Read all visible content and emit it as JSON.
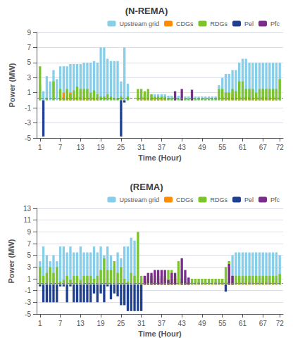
{
  "chart_data": [
    {
      "type": "bar",
      "stacked": true,
      "title": "(N-REMA)",
      "x_label": "Time (Hour)",
      "y_label": "Power (MW)",
      "x": [
        1,
        2,
        3,
        4,
        5,
        6,
        7,
        8,
        9,
        10,
        11,
        12,
        13,
        14,
        15,
        16,
        17,
        18,
        19,
        20,
        21,
        22,
        23,
        24,
        25,
        26,
        27,
        28,
        29,
        30,
        31,
        32,
        33,
        34,
        35,
        36,
        37,
        38,
        39,
        40,
        41,
        42,
        43,
        44,
        45,
        46,
        47,
        48,
        49,
        50,
        51,
        52,
        53,
        54,
        55,
        56,
        57,
        58,
        59,
        60,
        61,
        62,
        63,
        64,
        65,
        66,
        67,
        68,
        69,
        70,
        71,
        72
      ],
      "xlim": [
        0,
        73
      ],
      "xticks": [
        1,
        7,
        13,
        19,
        25,
        31,
        37,
        43,
        49,
        55,
        61,
        67,
        72
      ],
      "ylim": [
        -5,
        9
      ],
      "yticks": [
        -5,
        -3,
        -1,
        1,
        3,
        5,
        7,
        9
      ],
      "grid": true,
      "legend": "upper right",
      "hline": 0.3,
      "series": [
        {
          "name": "Upstream grid",
          "color": "#87CEEB",
          "values": [
            2.0,
            1.2,
            3.2,
            2.5,
            4.0,
            2.8,
            4.5,
            4.5,
            4.5,
            4.8,
            4.8,
            4.8,
            4.8,
            5.0,
            5.0,
            5.0,
            5.2,
            5.0,
            7.0,
            7.0,
            5.5,
            5.2,
            5.2,
            5.2,
            2.5,
            7.0,
            2.2,
            0.0,
            0.0,
            0.5,
            0.5,
            0.8,
            1.0,
            0.8,
            0.8,
            0.8,
            0.8,
            0.8,
            0.6,
            0.6,
            0.6,
            0.6,
            0.5,
            0.5,
            0.5,
            0.5,
            0.5,
            0.5,
            0.5,
            0.5,
            0.5,
            0.5,
            0.5,
            2.0,
            3.0,
            3.5,
            3.5,
            4.0,
            4.0,
            5.0,
            5.5,
            5.5,
            5.0,
            5.0,
            5.0,
            5.0,
            5.0,
            5.0,
            5.0,
            5.0,
            5.0,
            5.0
          ]
        },
        {
          "name": "CDGs",
          "color": "#FF8C00",
          "values": [
            0.0,
            0.0,
            0.0,
            0.0,
            0.0,
            0.0,
            0.5,
            1.0,
            0.5,
            1.0,
            0.8,
            0.5,
            0.5,
            0.5,
            0.4,
            0.3,
            0.5,
            0.3,
            0.0,
            0.0,
            0.0,
            0.0,
            0.0,
            0.0,
            0.0,
            0.0,
            0.0,
            0.0,
            0.0,
            0.3,
            0.5,
            0.5,
            0.5,
            0.4,
            0.3,
            0.3,
            0.3,
            0.3,
            0.0,
            0.0,
            0.0,
            0.0,
            0.0,
            0.0,
            0.0,
            0.0,
            0.0,
            0.0,
            0.0,
            0.0,
            0.0,
            0.0,
            0.0,
            0.0,
            0.5,
            1.0,
            1.0,
            0.8,
            0.8,
            0.5,
            0.5,
            0.5,
            0.5,
            0.5,
            0.5,
            0.5,
            0.5,
            0.5,
            0.5,
            0.5,
            0.5,
            0.0
          ]
        },
        {
          "name": "RDGs",
          "color": "#7DC42C",
          "values": [
            4.5,
            0.0,
            0.3,
            0.0,
            2.5,
            0.0,
            1.5,
            0.3,
            1.5,
            0.8,
            1.3,
            1.8,
            1.5,
            1.5,
            1.5,
            1.0,
            1.3,
            0.8,
            0.5,
            0.5,
            0.8,
            0.5,
            0.3,
            0.3,
            0.5,
            0.0,
            0.5,
            0.0,
            0.0,
            1.5,
            1.5,
            1.2,
            1.5,
            0.8,
            0.5,
            0.5,
            0.5,
            0.5,
            0.3,
            0.3,
            0.3,
            0.2,
            0.2,
            0.2,
            0.2,
            0.2,
            0.2,
            0.2,
            0.2,
            0.2,
            0.2,
            0.2,
            0.2,
            1.5,
            1.5,
            1.0,
            1.0,
            1.5,
            1.2,
            2.5,
            2.5,
            1.5,
            1.5,
            1.5,
            1.0,
            1.5,
            1.5,
            1.5,
            1.5,
            1.5,
            1.5,
            2.8
          ]
        },
        {
          "name": "Pel",
          "color": "#1F3F8F",
          "values": [
            0.0,
            -4.8,
            0.0,
            0.0,
            0.0,
            0.0,
            0.0,
            0.0,
            0.0,
            0.0,
            0.0,
            0.0,
            0.0,
            0.0,
            0.0,
            0.0,
            0.0,
            0.0,
            0.0,
            0.0,
            0.0,
            0.0,
            0.0,
            0.0,
            -4.8,
            -0.3,
            0.0,
            0.0,
            0.0,
            0.0,
            0.0,
            0.0,
            0.0,
            0.0,
            0.0,
            0.0,
            0.0,
            0.0,
            0.0,
            0.0,
            0.0,
            0.0,
            0.0,
            0.0,
            0.0,
            0.0,
            0.0,
            0.0,
            0.0,
            0.0,
            0.0,
            0.0,
            0.0,
            0.0,
            0.0,
            0.0,
            0.0,
            0.0,
            0.0,
            0.0,
            0.0,
            0.0,
            0.0,
            0.0,
            0.0,
            0.0,
            0.0,
            0.0,
            0.0,
            0.0,
            0.0,
            0.0
          ]
        },
        {
          "name": "Pfc",
          "color": "#7B2D8B",
          "values": [
            0.0,
            0.0,
            0.0,
            0.0,
            0.0,
            0.0,
            0.0,
            0.0,
            0.0,
            0.0,
            0.0,
            0.0,
            0.0,
            0.0,
            0.0,
            0.0,
            0.0,
            0.0,
            0.0,
            0.0,
            0.0,
            0.0,
            0.0,
            0.0,
            0.0,
            0.0,
            0.0,
            0.0,
            0.0,
            0.0,
            0.0,
            0.0,
            0.0,
            0.0,
            0.0,
            0.0,
            0.0,
            0.0,
            0.0,
            0.0,
            1.2,
            0.0,
            1.5,
            0.0,
            0.0,
            1.4,
            0.0,
            0.0,
            0.0,
            0.0,
            0.0,
            0.0,
            0.0,
            0.0,
            0.0,
            0.0,
            0.0,
            0.0,
            0.0,
            0.0,
            0.0,
            0.0,
            0.0,
            0.0,
            0.0,
            0.0,
            0.0,
            0.0,
            0.0,
            0.0,
            0.0,
            0.0
          ]
        }
      ]
    },
    {
      "type": "bar",
      "stacked": true,
      "title": "(REMA)",
      "x_label": "Time (Hour)",
      "y_label": "Power (MW)",
      "x": [
        1,
        2,
        3,
        4,
        5,
        6,
        7,
        8,
        9,
        10,
        11,
        12,
        13,
        14,
        15,
        16,
        17,
        18,
        19,
        20,
        21,
        22,
        23,
        24,
        25,
        26,
        27,
        28,
        29,
        30,
        31,
        32,
        33,
        34,
        35,
        36,
        37,
        38,
        39,
        40,
        41,
        42,
        43,
        44,
        45,
        46,
        47,
        48,
        49,
        50,
        51,
        52,
        53,
        54,
        55,
        56,
        57,
        58,
        59,
        60,
        61,
        62,
        63,
        64,
        65,
        66,
        67,
        68,
        69,
        70,
        71,
        72
      ],
      "xlim": [
        0,
        73
      ],
      "xticks": [
        1,
        7,
        13,
        19,
        25,
        31,
        37,
        43,
        49,
        55,
        61,
        67,
        72
      ],
      "ylim": [
        -5,
        13
      ],
      "yticks": [
        -5,
        -3,
        -1,
        1,
        3,
        5,
        7,
        9,
        11,
        13
      ],
      "grid": true,
      "legend": "upper right",
      "hline": 0.3,
      "series": [
        {
          "name": "Upstream grid",
          "color": "#87CEEB",
          "values": [
            4.0,
            6.5,
            5.0,
            4.0,
            5.0,
            4.0,
            6.5,
            6.5,
            5.5,
            6.5,
            5.5,
            5.5,
            6.5,
            5.5,
            5.5,
            5.5,
            6.5,
            5.5,
            6.5,
            5.0,
            6.5,
            5.0,
            3.0,
            5.5,
            4.5,
            6.5,
            6.5,
            8.0,
            7.5,
            0.0,
            0.0,
            0.0,
            0.0,
            0.0,
            0.0,
            0.0,
            0.0,
            0.0,
            0.0,
            0.0,
            0.0,
            0.0,
            2.5,
            1.5,
            1.2,
            0.5,
            0.5,
            0.5,
            0.5,
            0.5,
            0.5,
            0.5,
            0.5,
            0.5,
            0.5,
            0.5,
            4.0,
            5.0,
            5.5,
            5.5,
            5.5,
            5.5,
            5.5,
            5.5,
            5.5,
            5.5,
            5.5,
            5.5,
            5.5,
            5.5,
            5.5,
            5.0
          ]
        },
        {
          "name": "CDGs",
          "color": "#FF8C00",
          "values": [
            0.0,
            0.0,
            0.0,
            0.0,
            0.0,
            0.0,
            0.0,
            0.0,
            0.0,
            0.0,
            0.0,
            0.0,
            0.0,
            0.0,
            0.0,
            0.0,
            0.0,
            0.0,
            0.0,
            0.0,
            0.0,
            0.0,
            0.0,
            0.0,
            0.0,
            0.0,
            0.0,
            0.0,
            0.0,
            0.0,
            0.8,
            0.8,
            0.8,
            0.8,
            0.5,
            0.5,
            0.8,
            0.8,
            0.8,
            0.8,
            1.0,
            0.8,
            0.5,
            0.5,
            0.3,
            0.3,
            0.3,
            0.3,
            0.3,
            0.3,
            0.3,
            0.3,
            0.3,
            0.3,
            0.3,
            0.5,
            0.5,
            0.5,
            0.5,
            0.5,
            0.5,
            0.5,
            0.5,
            0.5,
            0.5,
            0.5,
            0.5,
            0.5,
            0.5,
            0.5,
            0.5,
            0.0
          ]
        },
        {
          "name": "RDGs",
          "color": "#7DC42C",
          "values": [
            3.0,
            1.5,
            2.0,
            3.0,
            2.0,
            3.0,
            0.5,
            0.8,
            1.5,
            0.8,
            1.5,
            1.5,
            0.8,
            1.5,
            1.5,
            1.5,
            1.0,
            1.5,
            2.5,
            4.5,
            2.5,
            2.5,
            4.0,
            2.0,
            3.0,
            1.0,
            0.5,
            2.0,
            1.5,
            9.0,
            1.5,
            1.5,
            1.5,
            1.5,
            1.5,
            1.5,
            1.5,
            1.5,
            2.5,
            2.5,
            1.5,
            4.0,
            1.0,
            0.5,
            0.5,
            1.0,
            1.0,
            1.0,
            1.0,
            1.0,
            1.0,
            1.0,
            1.0,
            1.0,
            1.0,
            3.0,
            4.0,
            1.5,
            1.5,
            1.5,
            1.5,
            1.5,
            1.5,
            1.5,
            1.5,
            1.5,
            1.5,
            1.5,
            1.5,
            1.5,
            1.5,
            1.8
          ]
        },
        {
          "name": "Pel",
          "color": "#1F3F8F",
          "values": [
            -0.3,
            -3.0,
            -3.0,
            -3.0,
            -3.0,
            -3.0,
            -0.3,
            -0.3,
            -3.0,
            -0.3,
            -3.0,
            -3.0,
            -3.0,
            -3.0,
            -3.0,
            -3.0,
            -1.5,
            -3.0,
            -1.5,
            -3.0,
            -0.3,
            -2.5,
            -1.5,
            -2.0,
            -3.5,
            -3.5,
            -4.5,
            -4.5,
            -4.5,
            -4.5,
            -4.5,
            0.0,
            0.0,
            0.0,
            0.0,
            0.0,
            0.0,
            0.0,
            0.0,
            0.0,
            0.0,
            0.0,
            0.0,
            0.0,
            0.0,
            0.0,
            0.0,
            0.0,
            0.0,
            0.0,
            0.0,
            0.0,
            0.0,
            0.0,
            0.0,
            -1.2,
            0.0,
            0.0,
            0.0,
            0.0,
            0.0,
            0.0,
            0.0,
            0.0,
            0.0,
            0.0,
            0.0,
            0.0,
            0.0,
            0.0,
            0.0,
            0.0
          ]
        },
        {
          "name": "Pfc",
          "color": "#7B2D8B",
          "values": [
            0.0,
            0.0,
            0.0,
            0.0,
            0.0,
            0.0,
            0.0,
            0.0,
            0.0,
            0.0,
            0.0,
            0.0,
            0.0,
            0.0,
            0.0,
            0.0,
            0.0,
            0.0,
            0.0,
            0.0,
            0.0,
            0.0,
            0.0,
            0.0,
            0.0,
            0.0,
            0.0,
            0.0,
            0.0,
            0.0,
            0.0,
            1.5,
            2.0,
            2.0,
            2.5,
            2.5,
            2.5,
            2.5,
            0.8,
            2.0,
            2.0,
            0.0,
            4.5,
            2.5,
            1.2,
            0.0,
            0.0,
            0.0,
            0.0,
            0.0,
            0.0,
            0.0,
            0.0,
            0.0,
            0.0,
            0.0,
            3.5,
            1.5,
            0.0,
            0.0,
            0.0,
            0.0,
            0.0,
            0.0,
            0.0,
            0.0,
            0.0,
            0.0,
            0.0,
            0.0,
            0.0,
            0.0
          ]
        }
      ]
    }
  ]
}
